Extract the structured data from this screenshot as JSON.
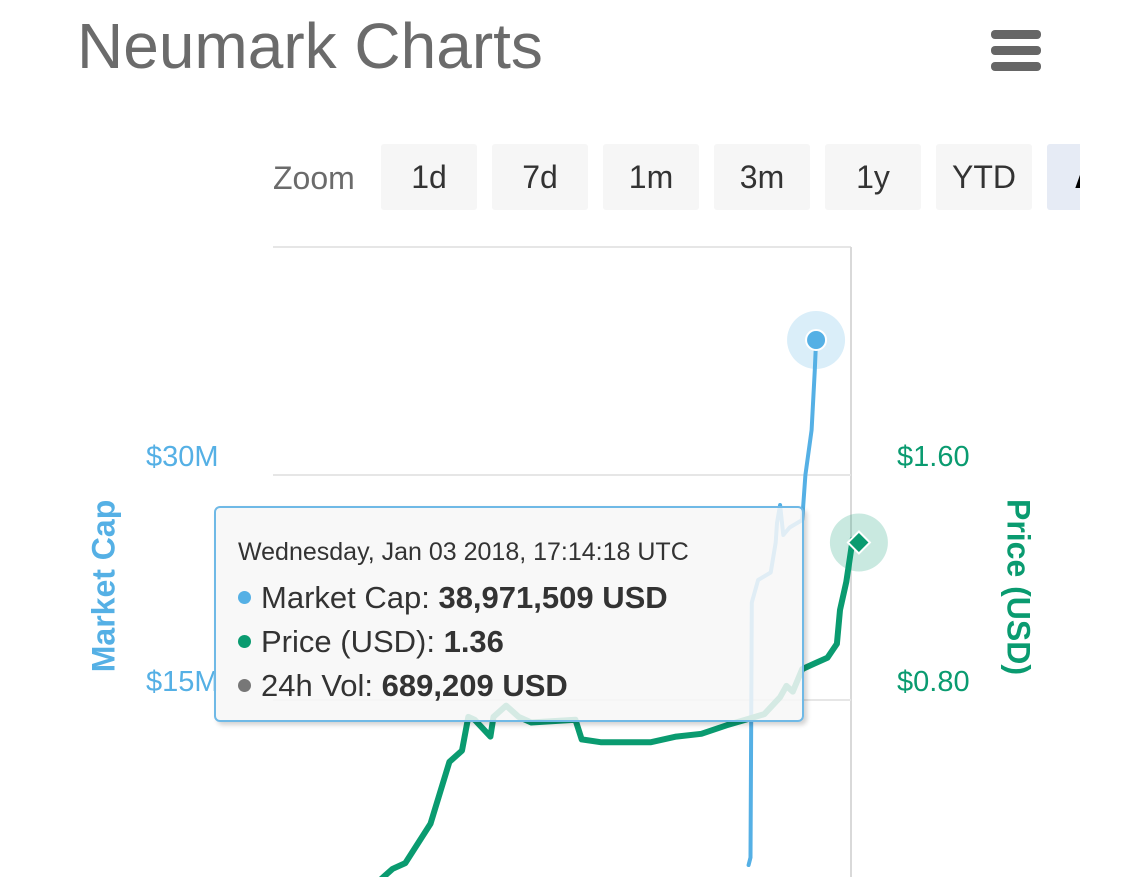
{
  "header": {
    "title": "Neumark Charts",
    "menu_icon": "hamburger-menu-icon"
  },
  "zoom": {
    "label": "Zoom",
    "buttons": [
      {
        "label": "1d",
        "active": false
      },
      {
        "label": "7d",
        "active": false
      },
      {
        "label": "1m",
        "active": false
      },
      {
        "label": "3m",
        "active": false
      },
      {
        "label": "1y",
        "active": false
      },
      {
        "label": "YTD",
        "active": false
      },
      {
        "label": "All",
        "active": true
      }
    ]
  },
  "tooltip": {
    "date": "Wednesday, Jan 03 2018, 17:14:18 UTC",
    "rows": [
      {
        "label": "Market Cap: ",
        "value": "38,971,509 USD",
        "color": "#55b0e5"
      },
      {
        "label": "Price (USD): ",
        "value": "1.36",
        "color": "#0a9b70"
      },
      {
        "label": "24h Vol: ",
        "value": "689,209 USD",
        "color": "#777777"
      }
    ]
  },
  "chart_data": {
    "type": "line",
    "title": "",
    "axes": {
      "left": {
        "title": "Market Cap",
        "ticks": [
          "$15M",
          "$30M"
        ],
        "tick_values": [
          15000000,
          30000000
        ],
        "color": "#55b0e5"
      },
      "right": {
        "title": "Price (USD)",
        "ticks": [
          "$0.80",
          "$1.60"
        ],
        "tick_values": [
          0.8,
          1.6
        ],
        "color": "#0a9b70"
      }
    },
    "grid": true,
    "series": [
      {
        "name": "Market Cap",
        "axis": "left",
        "color": "#55b0e5",
        "values": [
          [
            75.5,
            4000000
          ],
          [
            75.8,
            4500000
          ],
          [
            76.0,
            21500000
          ],
          [
            77.0,
            23000000
          ],
          [
            79.0,
            23500000
          ],
          [
            79.8,
            25500000
          ],
          [
            80.0,
            26800000
          ],
          [
            80.5,
            28000000
          ],
          [
            81.0,
            26000000
          ],
          [
            82.0,
            26500000
          ],
          [
            84.0,
            27000000
          ],
          [
            84.5,
            30000000
          ],
          [
            85.5,
            33000000
          ],
          [
            86.0,
            37000000
          ],
          [
            86.2,
            39000000
          ]
        ]
      },
      {
        "name": "Price (USD)",
        "axis": "right",
        "color": "#0a9b70",
        "values": [
          [
            0,
            0.09
          ],
          [
            4,
            0.07
          ],
          [
            8,
            0.06
          ],
          [
            12,
            0.07
          ],
          [
            13,
            0.08
          ],
          [
            16,
            0.14
          ],
          [
            19,
            0.2
          ],
          [
            21,
            0.22
          ],
          [
            25,
            0.36
          ],
          [
            28,
            0.58
          ],
          [
            30,
            0.62
          ],
          [
            31,
            0.74
          ],
          [
            32,
            0.73
          ],
          [
            34.5,
            0.67
          ],
          [
            35,
            0.74
          ],
          [
            37,
            0.78
          ],
          [
            39,
            0.74
          ],
          [
            41,
            0.72
          ],
          [
            48,
            0.73
          ],
          [
            49,
            0.66
          ],
          [
            52,
            0.65
          ],
          [
            56,
            0.65
          ],
          [
            60,
            0.65
          ],
          [
            64,
            0.67
          ],
          [
            68,
            0.68
          ],
          [
            72,
            0.71
          ],
          [
            75,
            0.73
          ],
          [
            78,
            0.75
          ],
          [
            80.5,
            0.81
          ],
          [
            81.5,
            0.85
          ],
          [
            82.5,
            0.83
          ],
          [
            84,
            0.91
          ],
          [
            86,
            0.93
          ],
          [
            88,
            0.95
          ],
          [
            89.5,
            1.0
          ],
          [
            90,
            1.12
          ],
          [
            91,
            1.22
          ],
          [
            92,
            1.37
          ],
          [
            93,
            1.36
          ]
        ]
      }
    ],
    "x_range": [
      0,
      100
    ],
    "y_left_range": [
      0,
      45000000
    ],
    "y_right_range": [
      0,
      2.4
    ]
  }
}
